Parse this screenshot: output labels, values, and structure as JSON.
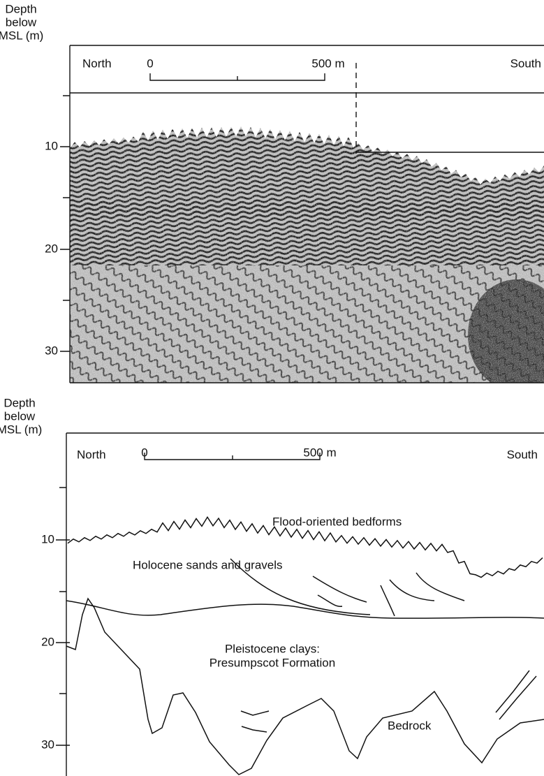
{
  "top_panel": {
    "axis_label": [
      "Depth",
      "below",
      "MSL (m)"
    ],
    "north": "North",
    "south": "South",
    "scale_start": "0",
    "scale_end": "500 m",
    "depth_ticks": [
      "10",
      "20",
      "30"
    ]
  },
  "bottom_panel": {
    "axis_label": [
      "Depth",
      "below",
      "MSL (m)"
    ],
    "north": "North",
    "south": "South",
    "scale_start": "0",
    "scale_end": "500 m",
    "depth_ticks": [
      "10",
      "20",
      "30"
    ],
    "labels": {
      "bedforms": "Flood-oriented bedforms",
      "holocene": "Holocene sands and gravels",
      "pleistocene": [
        "Pleistocene clays:",
        "Presumpscot Formation"
      ],
      "bedrock": "Bedrock"
    }
  }
}
